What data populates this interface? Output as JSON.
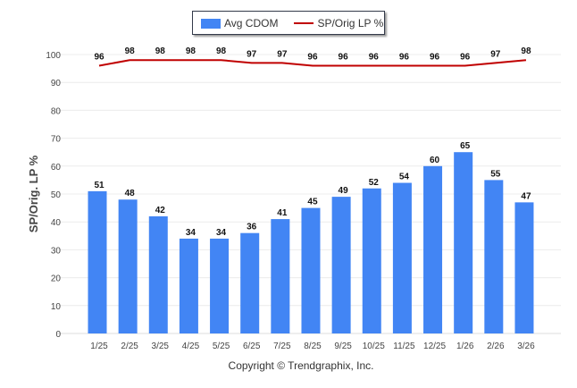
{
  "chart_data": {
    "type": "bar",
    "categories": [
      "1/25",
      "2/25",
      "3/25",
      "4/25",
      "5/25",
      "6/25",
      "7/25",
      "8/25",
      "9/25",
      "10/25",
      "11/25",
      "12/25",
      "1/26",
      "2/26",
      "3/26"
    ],
    "series": [
      {
        "name": "Avg CDOM",
        "type": "bar",
        "color": "#4285f4",
        "values": [
          51,
          48,
          42,
          34,
          34,
          36,
          41,
          45,
          49,
          52,
          54,
          60,
          65,
          55,
          47
        ]
      },
      {
        "name": "SP/Orig LP %",
        "type": "line",
        "color": "#c00000",
        "values": [
          96,
          98,
          98,
          98,
          98,
          97,
          97,
          96,
          96,
          96,
          96,
          96,
          96,
          97,
          98
        ]
      }
    ],
    "ylabel": "SP/Orig. LP %",
    "ylim": [
      0,
      100
    ],
    "yticks": [
      "0",
      "10",
      "20",
      "30",
      "40",
      "50",
      "60",
      "70",
      "80",
      "90",
      "100"
    ],
    "grid": true,
    "legend_position": "top-center"
  },
  "copyright": "Copyright © Trendgraphix, Inc."
}
